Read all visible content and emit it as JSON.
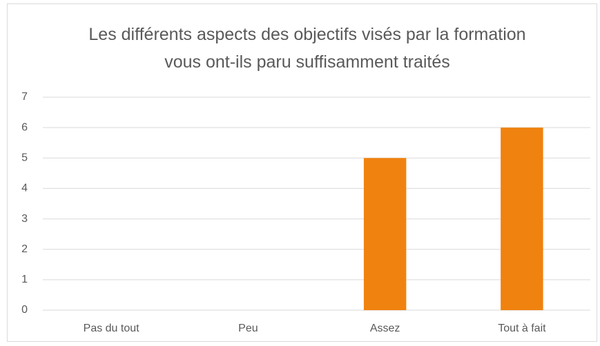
{
  "chart_data": {
    "type": "bar",
    "title": "Les différents aspects des objectifs visés par la formation vous ont-ils paru suffisamment traités",
    "categories": [
      "Pas du tout",
      "Peu",
      "Assez",
      "Tout à fait"
    ],
    "values": [
      0,
      0,
      5,
      6
    ],
    "color": "#f0820f",
    "ylim": [
      0,
      7
    ],
    "yticks": [
      0,
      1,
      2,
      3,
      4,
      5,
      6,
      7
    ],
    "grid": true
  }
}
